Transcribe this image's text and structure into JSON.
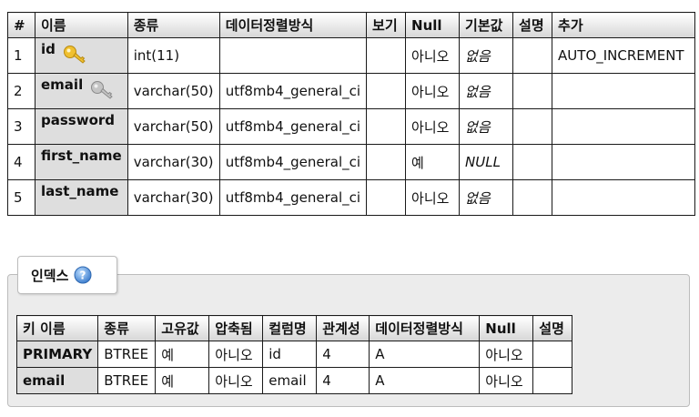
{
  "structure": {
    "headers": [
      "#",
      "이름",
      "종류",
      "데이터정렬방식",
      "보기",
      "Null",
      "기본값",
      "설명",
      "추가"
    ],
    "rows": [
      {
        "num": "1",
        "name": "id",
        "key": "primary",
        "type": "int(11)",
        "collation": "",
        "attributes": "",
        "null": "아니오",
        "default": "없음",
        "comment": "",
        "extra": "AUTO_INCREMENT"
      },
      {
        "num": "2",
        "name": "email",
        "key": "unique",
        "type": "varchar(50)",
        "collation": "utf8mb4_general_ci",
        "attributes": "",
        "null": "아니오",
        "default": "없음",
        "comment": "",
        "extra": ""
      },
      {
        "num": "3",
        "name": "password",
        "key": "",
        "type": "varchar(50)",
        "collation": "utf8mb4_general_ci",
        "attributes": "",
        "null": "아니오",
        "default": "없음",
        "comment": "",
        "extra": ""
      },
      {
        "num": "4",
        "name": "first_name",
        "key": "",
        "type": "varchar(30)",
        "collation": "utf8mb4_general_ci",
        "attributes": "",
        "null": "예",
        "default": "NULL",
        "comment": "",
        "extra": ""
      },
      {
        "num": "5",
        "name": "last_name",
        "key": "",
        "type": "varchar(30)",
        "collation": "utf8mb4_general_ci",
        "attributes": "",
        "null": "아니오",
        "default": "없음",
        "comment": "",
        "extra": ""
      }
    ]
  },
  "index_section": {
    "title": "인덱스",
    "help_icon": "help-icon",
    "headers": [
      "키 이름",
      "종류",
      "고유값",
      "압축됨",
      "컬럼명",
      "관계성",
      "데이터정렬방식",
      "Null",
      "설명"
    ],
    "rows": [
      {
        "key_name": "PRIMARY",
        "type": "BTREE",
        "unique": "예",
        "packed": "아니오",
        "column": "id",
        "cardinality": "4",
        "collation": "A",
        "null": "아니오",
        "comment": ""
      },
      {
        "key_name": "email",
        "type": "BTREE",
        "unique": "예",
        "packed": "아니오",
        "column": "email",
        "cardinality": "4",
        "collation": "A",
        "null": "아니오",
        "comment": ""
      }
    ]
  },
  "colors": {
    "primary_key": "#e8b020",
    "unique_key": "#a8a8a8",
    "help": "#4a8fd8"
  }
}
